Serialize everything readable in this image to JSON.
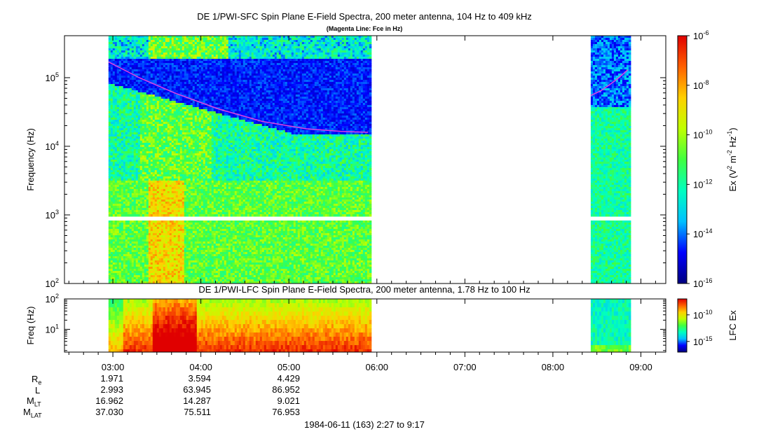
{
  "top_title": "DE 1/PWI-SFC  Spin Plane E-Field Spectra, 200 meter antenna, 104 Hz to 409 kHz",
  "top_subtitle": "(Magenta Line: Fce in Hz)",
  "bottom_title": "DE 1/PWI-LFC  Spin Plane E-Field Spectra, 200 meter antenna, 1.78 Hz to 100 Hz",
  "footer": "1984-06-11 (163) 2:27 to 9:17",
  "colors": {
    "fce_line": "#e040e0",
    "colormap": [
      "#00007f",
      "#0000ff",
      "#00c0ff",
      "#00ffc0",
      "#40ff40",
      "#c0ff00",
      "#ffd000",
      "#ff6000",
      "#e00000"
    ]
  },
  "chart_data": [
    {
      "type": "heatmap",
      "name": "sfc",
      "xlabel": "",
      "ylabel": "Frequency (Hz)",
      "yscale": "log",
      "ylim": [
        100,
        409000
      ],
      "y_ticks": [
        {
          "value": 100,
          "base": "10",
          "exp": "2"
        },
        {
          "value": 1000,
          "base": "10",
          "exp": "3"
        },
        {
          "value": 10000,
          "base": "10",
          "exp": "4"
        },
        {
          "value": 100000,
          "base": "10",
          "exp": "5"
        }
      ],
      "x_range_hours": [
        2.45,
        9.283
      ],
      "data_intervals_hours": [
        [
          2.95,
          5.93
        ],
        [
          8.43,
          8.88
        ]
      ],
      "colorbar": {
        "label": "Ex (V² m⁻² Hz⁻¹)",
        "label_parts": [
          "Ex (V",
          "2",
          " m",
          "-2",
          " Hz",
          "-1",
          ")"
        ],
        "range_log10": [
          -16,
          -6
        ],
        "ticks": [
          {
            "value": -6,
            "base": "10",
            "exp": "-6"
          },
          {
            "value": -8,
            "base": "10",
            "exp": "-8"
          },
          {
            "value": -10,
            "base": "10",
            "exp": "-10"
          },
          {
            "value": -12,
            "base": "10",
            "exp": "-12"
          },
          {
            "value": -14,
            "base": "10",
            "exp": "-14"
          },
          {
            "value": -16,
            "base": "10",
            "exp": "-16"
          }
        ]
      },
      "fce_line": [
        {
          "segment": 1,
          "points": [
            [
              2.95,
              170000
            ],
            [
              3.3,
              100000
            ],
            [
              3.7,
              60000
            ],
            [
              4.2,
              35000
            ],
            [
              4.7,
              23000
            ],
            [
              5.2,
              18000
            ],
            [
              5.6,
              16500
            ],
            [
              5.9,
              16000
            ]
          ]
        },
        {
          "segment": 2,
          "points": [
            [
              8.43,
              55000
            ],
            [
              8.55,
              65000
            ],
            [
              8.65,
              80000
            ],
            [
              8.75,
              100000
            ],
            [
              8.85,
              130000
            ]
          ]
        }
      ]
    },
    {
      "type": "heatmap",
      "name": "lfc",
      "ylabel": "Freq (Hz)",
      "yscale": "log",
      "ylim": [
        1.78,
        100
      ],
      "y_ticks": [
        {
          "value": 10,
          "base": "10",
          "exp": "1"
        },
        {
          "value": 100,
          "base": "10",
          "exp": "2"
        }
      ],
      "x_range_hours": [
        2.45,
        9.283
      ],
      "data_intervals_hours": [
        [
          2.95,
          5.93
        ],
        [
          8.43,
          8.88
        ]
      ],
      "colorbar": {
        "label": "LFC Ex",
        "range_log10": [
          -17,
          -7
        ],
        "ticks": [
          {
            "value": -10,
            "base": "10",
            "exp": "-10"
          },
          {
            "value": -15,
            "base": "10",
            "exp": "-15"
          }
        ]
      },
      "x_ticks": [
        {
          "value": 3,
          "label": "03:00"
        },
        {
          "value": 4,
          "label": "04:00"
        },
        {
          "value": 5,
          "label": "05:00"
        },
        {
          "value": 6,
          "label": "06:00"
        },
        {
          "value": 7,
          "label": "07:00"
        },
        {
          "value": 8,
          "label": "08:00"
        },
        {
          "value": 9,
          "label": "09:00"
        }
      ]
    }
  ],
  "ephemeris": {
    "rows": [
      {
        "label": "R",
        "sub": "e",
        "values": [
          "1.971",
          "3.594",
          "4.429"
        ]
      },
      {
        "label": "L",
        "sub": "",
        "values": [
          "2.993",
          "63.945",
          "86.952"
        ]
      },
      {
        "label": "M",
        "sub": "LT",
        "values": [
          "16.962",
          "14.287",
          "9.021"
        ]
      },
      {
        "label": "M",
        "sub": "LAT",
        "values": [
          "37.030",
          "75.511",
          "76.953"
        ]
      }
    ]
  }
}
